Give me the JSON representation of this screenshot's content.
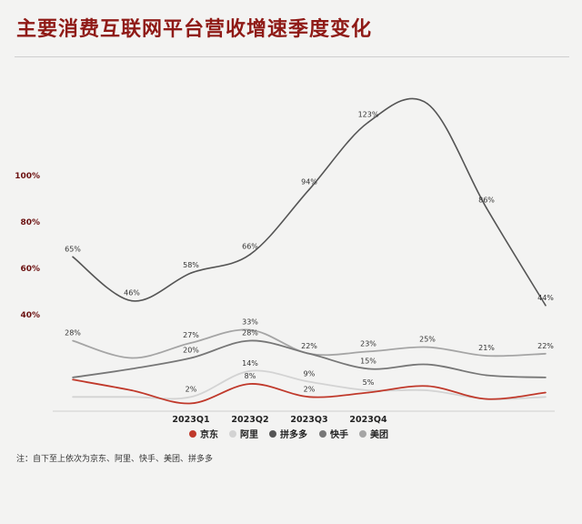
{
  "chart_data": {
    "type": "line",
    "title": "主要消费互联网平台营收增速季度变化",
    "categories": [
      "",
      "",
      "2023Q1",
      "2023Q2",
      "2023Q3",
      "2023Q4",
      "",
      "",
      ""
    ],
    "yticks": [
      "100%",
      "80%",
      "60%",
      "40%"
    ],
    "series": [
      {
        "name": "京东",
        "color": "#c0392b",
        "values": [
          10,
          5,
          -1,
          8,
          2,
          4,
          7,
          1,
          4
        ],
        "labels": [
          "",
          "",
          "",
          "8%",
          "2%",
          "",
          "",
          "",
          ""
        ]
      },
      {
        "name": "阿里",
        "color": "#d3d3d3",
        "values": [
          2,
          2,
          2,
          14,
          9,
          5,
          5,
          1,
          2
        ],
        "labels": [
          "",
          "",
          "2%",
          "14%",
          "9%",
          "5%",
          "",
          "",
          ""
        ]
      },
      {
        "name": "拼多多",
        "color": "#555555",
        "values": [
          65,
          46,
          58,
          66,
          94,
          123,
          131,
          86,
          44
        ],
        "labels": [
          "65%",
          "46%",
          "58%",
          "66%",
          "94%",
          "123%",
          "",
          "86%",
          "44%"
        ]
      },
      {
        "name": "快手",
        "color": "#777777",
        "values": [
          11,
          15,
          20,
          28,
          22,
          15,
          17,
          12,
          11
        ],
        "labels": [
          "",
          "",
          "20%",
          "28%",
          "",
          "15%",
          "",
          "",
          ""
        ]
      },
      {
        "name": "美团",
        "color": "#a5a5a5",
        "values": [
          28,
          20,
          27,
          33,
          22,
          23,
          25,
          21,
          22
        ],
        "labels": [
          "28%",
          "",
          "27%",
          "33%",
          "22%",
          "23%",
          "25%",
          "21%",
          "22%"
        ]
      }
    ],
    "legend_position": "bottom",
    "grid": false
  },
  "footnote": "注：自下至上依次为京东、阿里、快手、美团、拼多多"
}
